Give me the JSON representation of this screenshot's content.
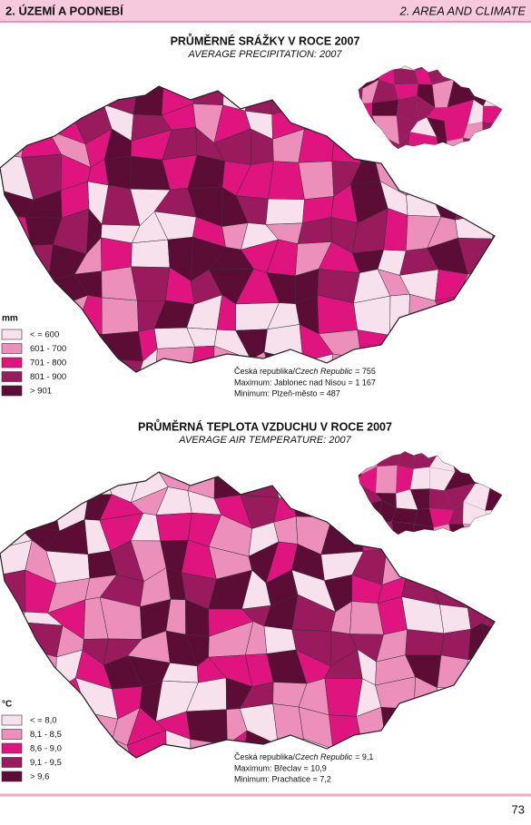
{
  "header": {
    "left": "2. ÚZEMÍ A PODNEBÍ",
    "right": "2. AREA AND CLIMATE"
  },
  "maps": [
    {
      "title": "PRŮMĚRNÉ SRÁŽKY V ROCE 2007",
      "subtitle": "AVERAGE PRECIPITATION: 2007",
      "unit": "mm",
      "legend": [
        {
          "label": "< = 600",
          "color": "#f7e1ec"
        },
        {
          "label": "601 - 700",
          "color": "#ec8fbb"
        },
        {
          "label": "701 - 800",
          "color": "#e0147f"
        },
        {
          "label": "801 - 900",
          "color": "#9a1a5e"
        },
        {
          "label": "> 901",
          "color": "#5c0d36"
        }
      ],
      "national": {
        "label": "Česká republika/",
        "label_en": "Czech Republic",
        "value": "= 755"
      },
      "maximum": "Maximum: Jablonec nad Nisou = 1 167",
      "minimum": "Minimum: Plzeň-město = 487"
    },
    {
      "title": "PRŮMĚRNÁ TEPLOTA VZDUCHU V ROCE 2007",
      "subtitle": "AVERAGE AIR TEMPERATURE: 2007",
      "unit": "°C",
      "legend": [
        {
          "label": "< = 8,0",
          "color": "#f7e1ec"
        },
        {
          "label": "8,1 - 8,5",
          "color": "#ec8fbb"
        },
        {
          "label": "8,6 - 9,0",
          "color": "#e0147f"
        },
        {
          "label": "9,1 - 9,5",
          "color": "#9a1a5e"
        },
        {
          "label": "> 9,6",
          "color": "#5c0d36"
        }
      ],
      "national": {
        "label": "Česká republika/",
        "label_en": "Czech Republic",
        "value": "= 9,1"
      },
      "maximum": "Maximum: Břeclav = 10,9",
      "minimum": "Minimum: Prachatice = 7,2"
    }
  ],
  "page_number": "73"
}
